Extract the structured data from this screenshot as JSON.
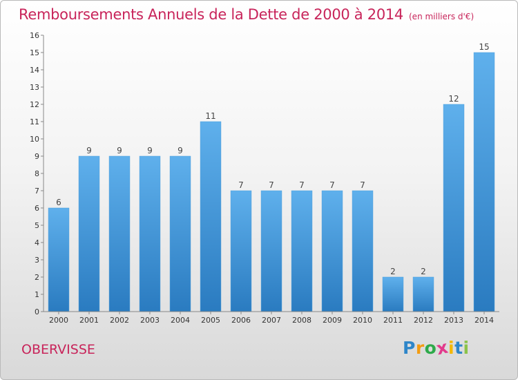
{
  "chart_data": {
    "type": "bar",
    "title": "Remboursements Annuels de la Dette de 2000 à 2014",
    "subtitle": "(en milliers d'€)",
    "categories": [
      "2000",
      "2001",
      "2002",
      "2003",
      "2004",
      "2005",
      "2006",
      "2007",
      "2008",
      "2009",
      "2010",
      "2011",
      "2012",
      "2013",
      "2014"
    ],
    "values": [
      6,
      9,
      9,
      9,
      9,
      11,
      7,
      7,
      7,
      7,
      7,
      2,
      2,
      12,
      15
    ],
    "ylim": [
      0,
      16
    ],
    "yticks": [
      0,
      1,
      2,
      3,
      4,
      5,
      6,
      7,
      8,
      9,
      10,
      11,
      12,
      13,
      14,
      15,
      16
    ],
    "xlabel": "",
    "ylabel": "",
    "grid": false,
    "bar_color": "#3c90d4"
  },
  "footer": {
    "commune": "OBERVISSE",
    "logo_letters": [
      "P",
      "r",
      "o",
      "x",
      "i",
      "t",
      "i"
    ],
    "logo_colors": [
      "#2e86c9",
      "#f39c12",
      "#2eaa4a",
      "#e23b8c",
      "#f5b800",
      "#2e86c9",
      "#8bc34a"
    ]
  }
}
